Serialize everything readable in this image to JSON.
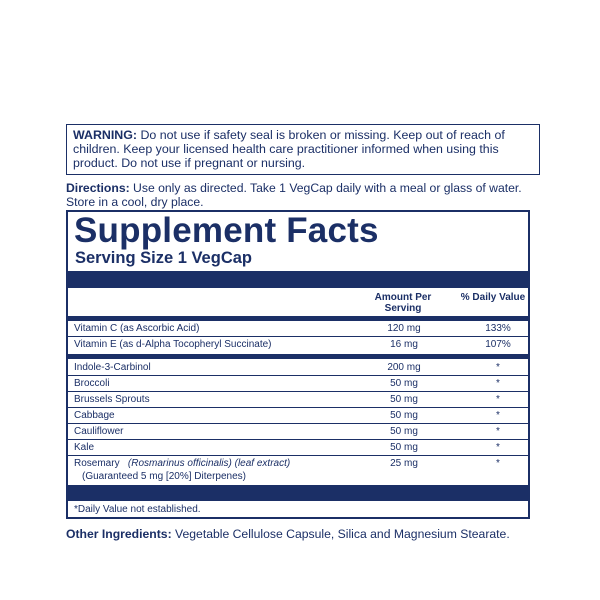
{
  "warning": {
    "label": "WARNING:",
    "text": " Do not use if safety seal is broken or missing. Keep out of reach of children. Keep your licensed health care practitioner informed when using this product. Do not use if pregnant or nursing."
  },
  "directions": {
    "label": "Directions:",
    "text": " Use only as directed. Take 1 VegCap daily with a meal or glass of water. Store in a cool, dry place."
  },
  "facts": {
    "title": "Supplement Facts",
    "serving": "Serving Size 1 VegCap",
    "header_amount": "Amount Per Serving",
    "header_dv": "% Daily Value",
    "rows_top": [
      {
        "name": "Vitamin C (as Ascorbic Acid)",
        "amount": "120 mg",
        "dv": "133%"
      },
      {
        "name": "Vitamin E (as d-Alpha Tocopheryl Succinate)",
        "amount": "16 mg",
        "dv": "107%"
      }
    ],
    "rows": [
      {
        "name": "Indole-3-Carbinol",
        "amount": "200 mg",
        "dv": "*"
      },
      {
        "name": "Broccoli",
        "amount": "50 mg",
        "dv": "*"
      },
      {
        "name": "Brussels Sprouts",
        "amount": "50 mg",
        "dv": "*"
      },
      {
        "name": "Cabbage",
        "amount": "50 mg",
        "dv": "*"
      },
      {
        "name": "Cauliflower",
        "amount": "50 mg",
        "dv": "*"
      },
      {
        "name": "Kale",
        "amount": "50 mg",
        "dv": "*"
      },
      {
        "name": "Rosemary",
        "latin": "(Rosmarinus officinalis)",
        "part": " (leaf extract)",
        "amount": "25 mg",
        "dv": "*",
        "sub": "(Guaranteed 5 mg [20%] Diterpenes)"
      }
    ],
    "footnote": "*Daily Value not established."
  },
  "other": {
    "label": "Other Ingredients:",
    "text": " Vegetable Cellulose Capsule, Silica and Magnesium Stearate."
  },
  "colors": {
    "ink": "#1b2f66",
    "background": "#ffffff"
  }
}
